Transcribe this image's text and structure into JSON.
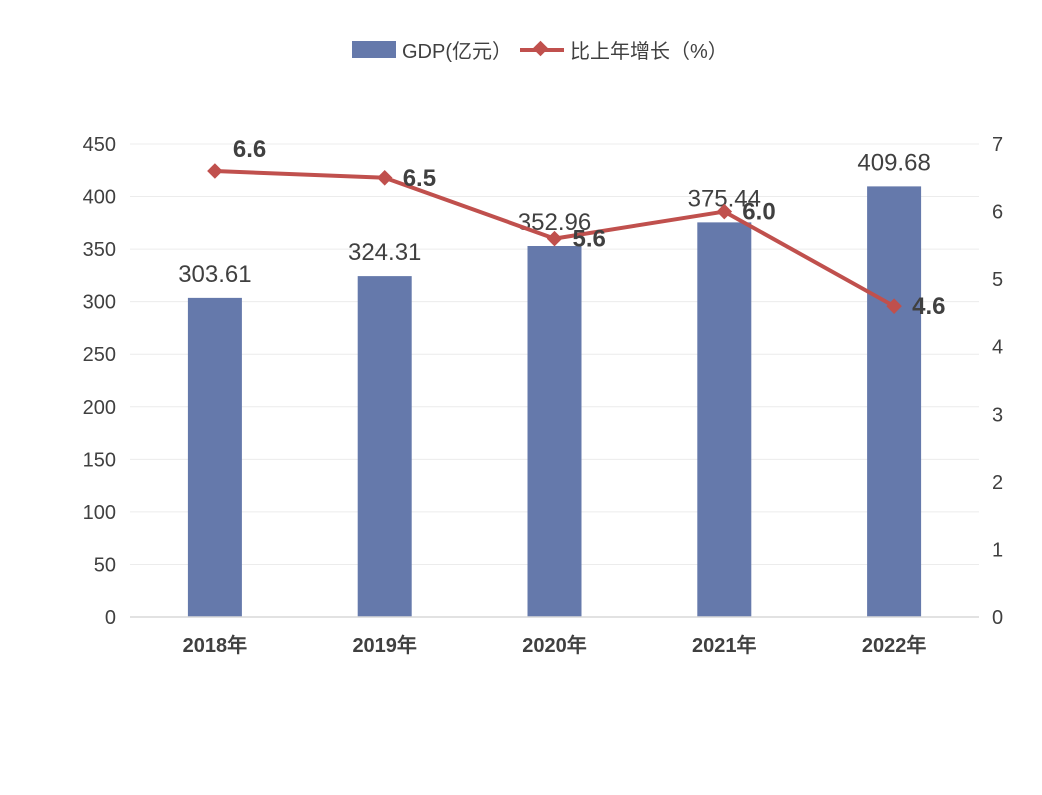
{
  "chart_data": {
    "type": "bar+line",
    "categories": [
      "2018年",
      "2019年",
      "2020年",
      "2021年",
      "2022年"
    ],
    "series": [
      {
        "name": "GDP(亿元）",
        "type": "bar",
        "axis": "left",
        "color": "#6579AB",
        "values": [
          303.61,
          324.31,
          352.96,
          375.44,
          409.68
        ],
        "labels": [
          "303.61",
          "324.31",
          "352.96",
          "375.44",
          "409.68"
        ]
      },
      {
        "name": "比上年增长（%）",
        "type": "line",
        "axis": "right",
        "color": "#C0504D",
        "values": [
          6.6,
          6.5,
          5.6,
          6.0,
          4.6
        ],
        "labels": [
          "6.6",
          "6.5",
          "5.6",
          "6.0",
          "4.6"
        ]
      }
    ],
    "y_left": {
      "min": 0,
      "max": 450,
      "ticks": [
        "0",
        "50",
        "100",
        "150",
        "200",
        "250",
        "300",
        "350",
        "400",
        "450"
      ]
    },
    "y_right": {
      "min": 0,
      "max": 7,
      "ticks": [
        "0",
        "1",
        "2",
        "3",
        "4",
        "5",
        "6",
        "7"
      ]
    },
    "legend_position": "top-center",
    "grid": true
  }
}
